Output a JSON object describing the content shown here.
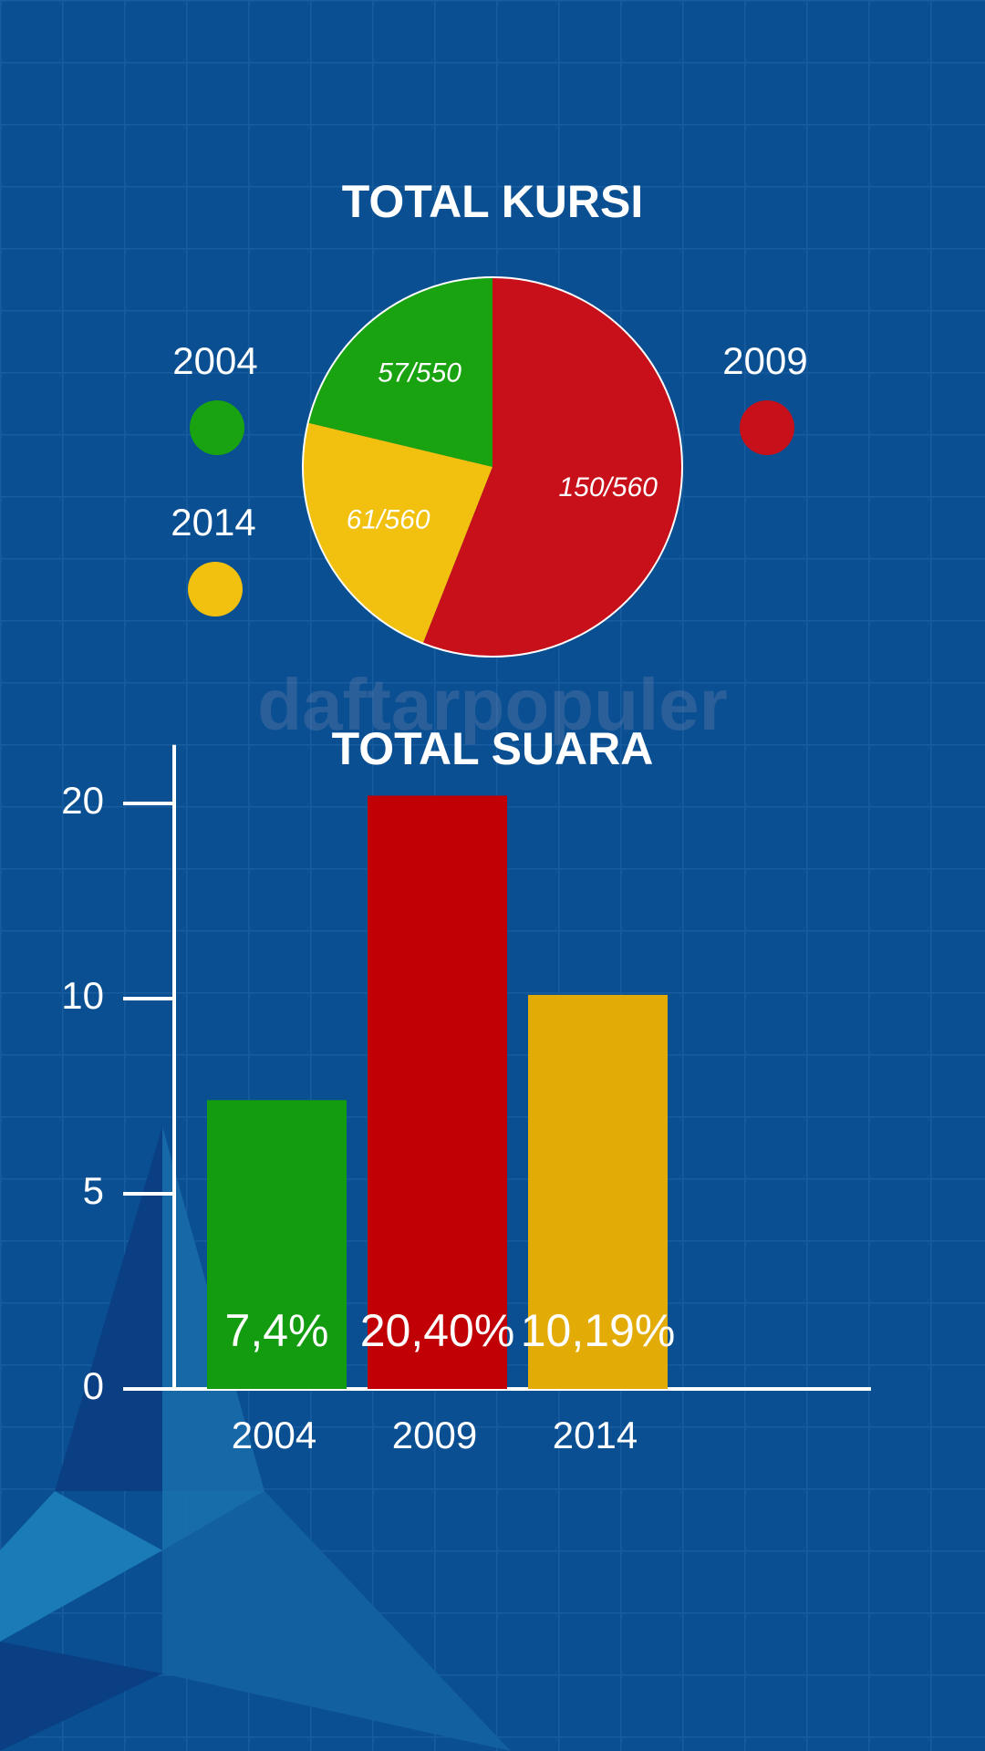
{
  "watermark": "daftarpopuler",
  "chart_data": [
    {
      "type": "pie",
      "title": "TOTAL KURSI",
      "categories": [
        "2004",
        "2014",
        "2009"
      ],
      "values": [
        57,
        61,
        150
      ],
      "value_labels": [
        "57/550",
        "61/560",
        "150/560"
      ],
      "colors": [
        "#1aa310",
        "#f2c10f",
        "#c8101a"
      ],
      "legend": true
    },
    {
      "type": "bar",
      "title": "TOTAL SUARA",
      "categories": [
        "2004",
        "2009",
        "2014"
      ],
      "values": [
        7.4,
        20.4,
        10.19
      ],
      "value_labels": [
        "7,4%",
        "20,40%",
        "10,19%"
      ],
      "colors": [
        "#139c10",
        "#c10006",
        "#e3ab06"
      ],
      "ylim": [
        0,
        23
      ],
      "yticks": [
        0,
        5,
        10,
        20
      ],
      "grid": false
    }
  ]
}
